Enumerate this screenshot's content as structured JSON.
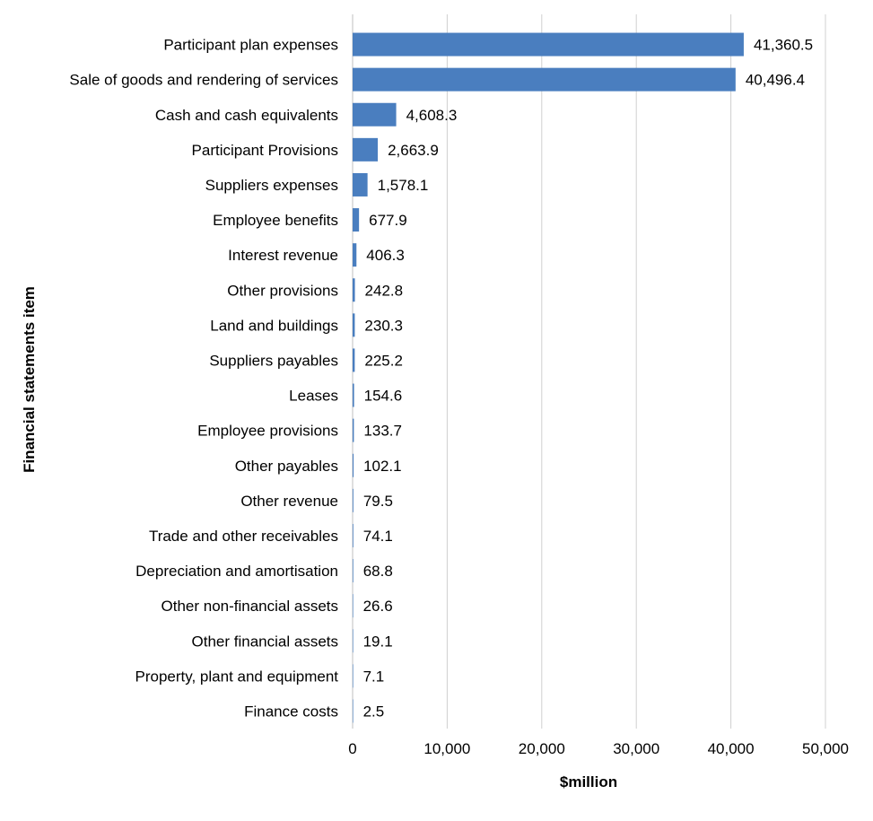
{
  "chart_data": {
    "type": "bar",
    "orientation": "horizontal",
    "title": "",
    "xlabel": "$million",
    "ylabel": "Financial statements item",
    "xlim": [
      0,
      50000
    ],
    "x_ticks": [
      0,
      10000,
      20000,
      30000,
      40000,
      50000
    ],
    "x_tick_labels": [
      "0",
      "10,000",
      "20,000",
      "30,000",
      "40,000",
      "50,000"
    ],
    "grid": "vertical",
    "bar_color": "#4a7ebf",
    "categories": [
      "Participant plan expenses",
      "Sale of goods and rendering of services",
      "Cash and cash equivalents",
      "Participant Provisions",
      "Suppliers expenses",
      "Employee benefits",
      "Interest revenue",
      "Other provisions",
      "Land and buildings",
      "Suppliers payables",
      "Leases",
      "Employee provisions",
      "Other payables",
      "Other revenue",
      "Trade and other receivables",
      "Depreciation and amortisation",
      "Other non-financial assets",
      "Other financial assets",
      "Property, plant and equipment",
      "Finance costs"
    ],
    "values": [
      41360.5,
      40496.4,
      4608.3,
      2663.9,
      1578.1,
      677.9,
      406.3,
      242.8,
      230.3,
      225.2,
      154.6,
      133.7,
      102.1,
      79.5,
      74.1,
      68.8,
      26.6,
      19.1,
      7.1,
      2.5
    ],
    "value_labels": [
      "41,360.5",
      "40,496.4",
      "4,608.3",
      "2,663.9",
      "1,578.1",
      "677.9",
      "406.3",
      "242.8",
      "230.3",
      "225.2",
      "154.6",
      "133.7",
      "102.1",
      "79.5",
      "74.1",
      "68.8",
      "26.6",
      "19.1",
      "7.1",
      "2.5"
    ]
  }
}
